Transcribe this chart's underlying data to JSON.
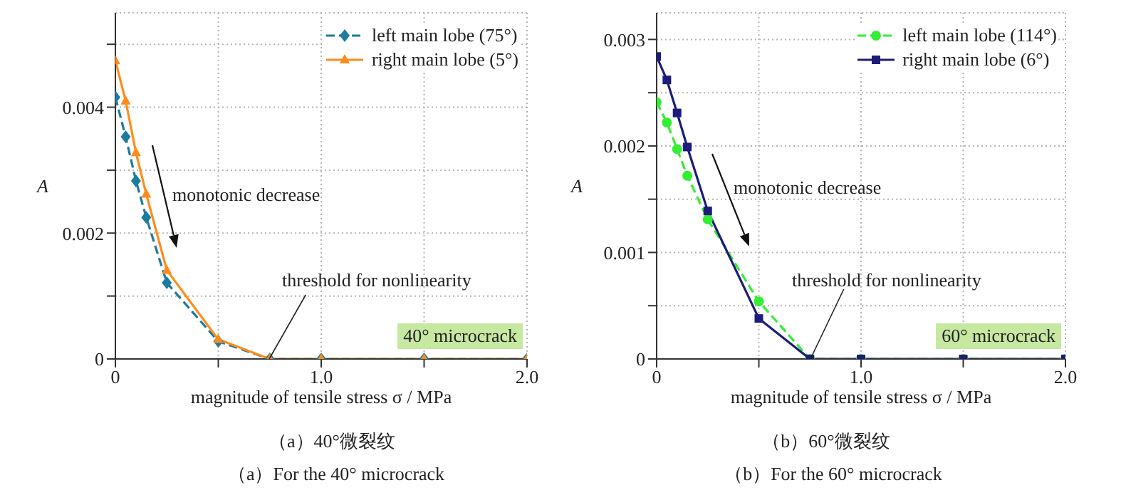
{
  "chart_data": [
    {
      "type": "line",
      "xlabel": "magnitude of tensile stress σ / MPa",
      "ylabel": "A",
      "x": [
        0,
        0.05,
        0.1,
        0.15,
        0.25,
        0.5,
        0.75,
        1.0,
        1.5,
        2.0
      ],
      "series": [
        {
          "name": "left main lobe (75°)",
          "color": "#1b7c9e",
          "marker": "diamond",
          "line_style": "dashed",
          "values": [
            0.00416,
            0.00353,
            0.00283,
            0.00225,
            0.00121,
            0.00028,
            0,
            0,
            0,
            0
          ]
        },
        {
          "name": "right main lobe (5°)",
          "color": "#ff8c1a",
          "marker": "triangle",
          "line_style": "solid",
          "values": [
            0.00474,
            0.0041,
            0.00328,
            0.00262,
            0.00141,
            0.00031,
            0,
            0,
            0,
            0
          ]
        }
      ],
      "xlim": [
        0,
        2
      ],
      "ylim": [
        0,
        0.0055
      ],
      "xticks": [
        0,
        {
          "value": 0.5,
          "label": null
        },
        {
          "value": 1,
          "label": "1.0"
        },
        {
          "value": 1.5,
          "label": null
        },
        {
          "value": 2,
          "label": "2.0"
        }
      ],
      "yticks": [
        0,
        {
          "value": 0.001,
          "label": null
        },
        0.002,
        {
          "value": 0.003,
          "label": null
        },
        0.004,
        {
          "value": 0.005,
          "label": null
        }
      ],
      "grid": true,
      "legend": "top right",
      "annotations": [
        "monotonic decrease",
        {
          "text": "threshold for nonlinearity",
          "x": 0.75,
          "y": 0
        },
        "40° microcrack",
        "（a）40°微裂纹",
        "（a）For the 40° microcrack"
      ]
    },
    {
      "type": "line",
      "xlabel": "magnitude of tensile stress σ / MPa",
      "ylabel": "A",
      "x": [
        0,
        0.05,
        0.1,
        0.15,
        0.25,
        0.5,
        0.75,
        1.0,
        1.5,
        2.0
      ],
      "series": [
        {
          "name": "left main lobe (114°)",
          "color": "#33ee33",
          "marker": "circle",
          "line_style": "dashed",
          "values": [
            0.00241,
            0.00222,
            0.00197,
            0.00172,
            0.00131,
            0.00054,
            0,
            0,
            0,
            0
          ]
        },
        {
          "name": "right main lobe (6°)",
          "color": "#1c1c7a",
          "marker": "square",
          "line_style": "solid",
          "values": [
            0.00284,
            0.00262,
            0.00231,
            0.00199,
            0.00139,
            0.00038,
            0,
            0,
            0,
            0
          ]
        }
      ],
      "xlim": [
        0,
        2
      ],
      "ylim": [
        0,
        0.00325
      ],
      "xticks": [
        0,
        {
          "value": 0.5,
          "label": null
        },
        {
          "value": 1,
          "label": "1.0"
        },
        {
          "value": 1.5,
          "label": null
        },
        {
          "value": 2,
          "label": "2.0"
        }
      ],
      "yticks": [
        0,
        {
          "value": 0.0005,
          "label": null
        },
        0.001,
        {
          "value": 0.0015,
          "label": null
        },
        0.002,
        {
          "value": 0.0025,
          "label": null
        },
        0.003
      ],
      "grid": true,
      "legend": "top right",
      "annotations": [
        "monotonic decrease",
        {
          "text": "threshold for nonlinearity",
          "x": 0.75,
          "y": 0
        },
        "60° microcrack",
        "（b）60°微裂纹",
        "（b）For the 60° microcrack"
      ]
    }
  ]
}
